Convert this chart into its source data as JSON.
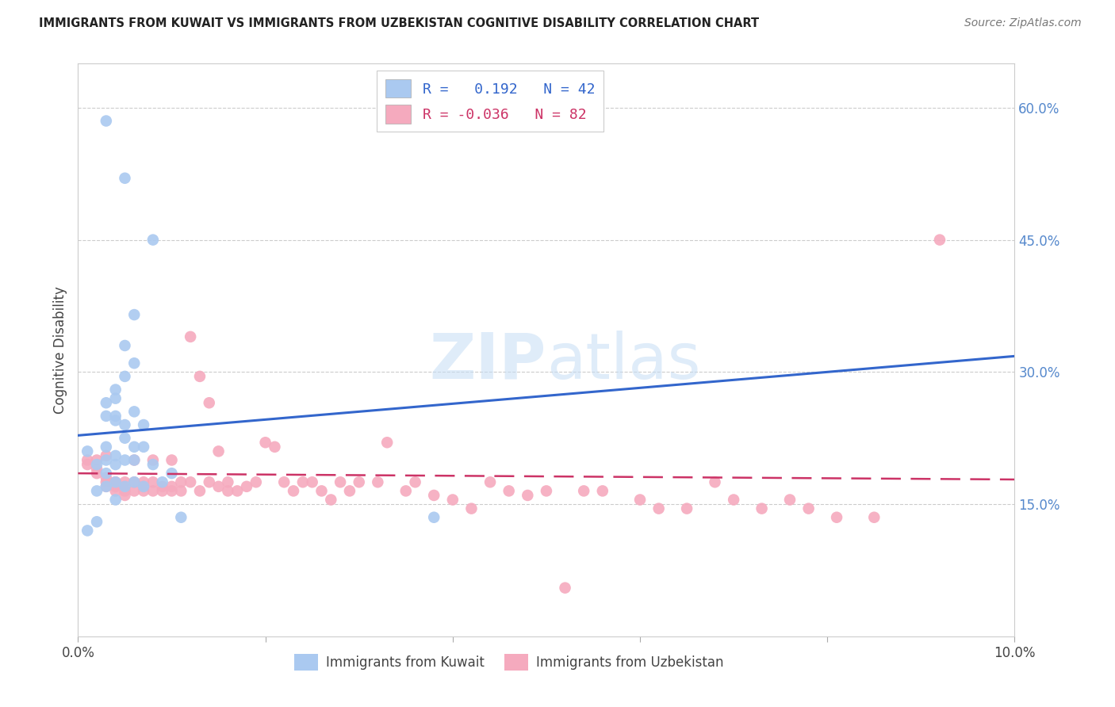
{
  "title": "IMMIGRANTS FROM KUWAIT VS IMMIGRANTS FROM UZBEKISTAN COGNITIVE DISABILITY CORRELATION CHART",
  "source": "Source: ZipAtlas.com",
  "ylabel": "Cognitive Disability",
  "xlim": [
    0.0,
    0.1
  ],
  "ylim": [
    0.0,
    0.65
  ],
  "yticks": [
    0.15,
    0.3,
    0.45,
    0.6
  ],
  "ytick_labels": [
    "15.0%",
    "30.0%",
    "45.0%",
    "60.0%"
  ],
  "kuwait_color": "#aac9f0",
  "uzbekistan_color": "#f5aabe",
  "kuwait_line_color": "#3366cc",
  "uzbekistan_line_color": "#cc3366",
  "R_kuwait": 0.192,
  "N_kuwait": 42,
  "R_uzbekistan": -0.036,
  "N_uzbekistan": 82,
  "legend_label_kuwait": "Immigrants from Kuwait",
  "legend_label_uzbekistan": "Immigrants from Uzbekistan",
  "kuwait_x": [
    0.003,
    0.005,
    0.006,
    0.004,
    0.003,
    0.004,
    0.005,
    0.006,
    0.005,
    0.004,
    0.003,
    0.004,
    0.005,
    0.006,
    0.007,
    0.005,
    0.004,
    0.003,
    0.006,
    0.007,
    0.005,
    0.004,
    0.003,
    0.008,
    0.01,
    0.009,
    0.007,
    0.006,
    0.005,
    0.004,
    0.003,
    0.002,
    0.001,
    0.011,
    0.002,
    0.001,
    0.003,
    0.002,
    0.038,
    0.004,
    0.006,
    0.008
  ],
  "kuwait_y": [
    0.585,
    0.52,
    0.365,
    0.27,
    0.265,
    0.25,
    0.33,
    0.31,
    0.295,
    0.28,
    0.25,
    0.245,
    0.24,
    0.255,
    0.24,
    0.225,
    0.205,
    0.215,
    0.215,
    0.215,
    0.2,
    0.195,
    0.185,
    0.195,
    0.185,
    0.175,
    0.17,
    0.175,
    0.17,
    0.175,
    0.17,
    0.165,
    0.21,
    0.135,
    0.13,
    0.12,
    0.2,
    0.195,
    0.135,
    0.155,
    0.2,
    0.45
  ],
  "uzbekistan_x": [
    0.001,
    0.001,
    0.002,
    0.002,
    0.002,
    0.003,
    0.003,
    0.003,
    0.003,
    0.004,
    0.004,
    0.004,
    0.004,
    0.005,
    0.005,
    0.005,
    0.005,
    0.006,
    0.006,
    0.006,
    0.007,
    0.007,
    0.007,
    0.008,
    0.008,
    0.008,
    0.009,
    0.009,
    0.01,
    0.01,
    0.01,
    0.011,
    0.011,
    0.012,
    0.012,
    0.013,
    0.013,
    0.014,
    0.014,
    0.015,
    0.015,
    0.016,
    0.016,
    0.017,
    0.018,
    0.019,
    0.02,
    0.021,
    0.022,
    0.023,
    0.024,
    0.025,
    0.026,
    0.027,
    0.028,
    0.029,
    0.03,
    0.032,
    0.033,
    0.035,
    0.036,
    0.038,
    0.04,
    0.042,
    0.044,
    0.046,
    0.048,
    0.05,
    0.052,
    0.054,
    0.056,
    0.06,
    0.062,
    0.065,
    0.068,
    0.07,
    0.073,
    0.076,
    0.078,
    0.081,
    0.085,
    0.092
  ],
  "uzbekistan_y": [
    0.2,
    0.195,
    0.185,
    0.2,
    0.19,
    0.205,
    0.175,
    0.17,
    0.18,
    0.175,
    0.165,
    0.175,
    0.17,
    0.17,
    0.165,
    0.175,
    0.16,
    0.2,
    0.175,
    0.165,
    0.165,
    0.175,
    0.17,
    0.165,
    0.175,
    0.2,
    0.17,
    0.165,
    0.17,
    0.2,
    0.165,
    0.165,
    0.175,
    0.34,
    0.175,
    0.295,
    0.165,
    0.265,
    0.175,
    0.17,
    0.21,
    0.165,
    0.175,
    0.165,
    0.17,
    0.175,
    0.22,
    0.215,
    0.175,
    0.165,
    0.175,
    0.175,
    0.165,
    0.155,
    0.175,
    0.165,
    0.175,
    0.175,
    0.22,
    0.165,
    0.175,
    0.16,
    0.155,
    0.145,
    0.175,
    0.165,
    0.16,
    0.165,
    0.055,
    0.165,
    0.165,
    0.155,
    0.145,
    0.145,
    0.175,
    0.155,
    0.145,
    0.155,
    0.145,
    0.135,
    0.135,
    0.45
  ],
  "kuwait_line_x": [
    0.0,
    0.1
  ],
  "kuwait_line_y": [
    0.228,
    0.318
  ],
  "uzbekistan_line_x": [
    0.0,
    0.1
  ],
  "uzbekistan_line_y": [
    0.185,
    0.178
  ]
}
